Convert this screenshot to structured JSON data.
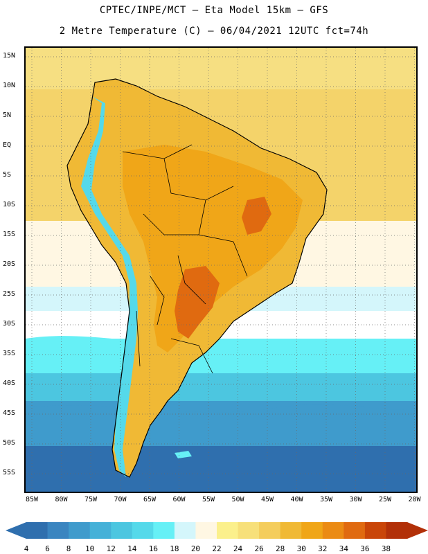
{
  "header": {
    "line1": "CPTEC/INPE/MCT –  Eta Model 15km – GFS",
    "line2": "2 Metre Temperature (C) – 06/04/2021 12UTC fct=74h"
  },
  "axes": {
    "lat_labels": [
      "15N",
      "10N",
      "5N",
      "EQ",
      "5S",
      "10S",
      "15S",
      "20S",
      "25S",
      "30S",
      "35S",
      "40S",
      "45S",
      "50S",
      "55S"
    ],
    "lon_labels": [
      "85W",
      "80W",
      "75W",
      "70W",
      "65W",
      "60W",
      "55W",
      "50W",
      "45W",
      "40W",
      "35W",
      "30W",
      "25W",
      "20W"
    ]
  },
  "colorbar": {
    "levels": [
      "4",
      "6",
      "8",
      "10",
      "12",
      "14",
      "16",
      "18",
      "20",
      "22",
      "24",
      "26",
      "28",
      "30",
      "32",
      "34",
      "36",
      "38"
    ],
    "colors": [
      "#2f6fae",
      "#3a85c0",
      "#3f9bcc",
      "#45b1d8",
      "#4cc6e0",
      "#55d9ea",
      "#66f0f6",
      "#d4f6fb",
      "#fff7e3",
      "#fbf08c",
      "#f7e07a",
      "#f4cd5c",
      "#f0b935",
      "#f0a618",
      "#eb8b14",
      "#e06a10",
      "#c94508",
      "#b23008"
    ],
    "left_arrow_color": "#2f6fae",
    "right_arrow_color": "#b23008"
  },
  "map_colors": {
    "ocean_north": "#f4d36a",
    "ocean_north_warm": "#f6df82",
    "land_hot": "#f0b935",
    "land_hotter": "#f0a618",
    "land_hottest": "#e06a10",
    "ocean_mid": "#fff7e3",
    "ocean_cool": "#d4f6fb",
    "ocean_cold1": "#66f0f6",
    "ocean_cold2": "#4cc6e0",
    "ocean_cold3": "#3f9bcc",
    "ocean_coldest": "#2f6fae",
    "andes": "#55d9ea"
  }
}
